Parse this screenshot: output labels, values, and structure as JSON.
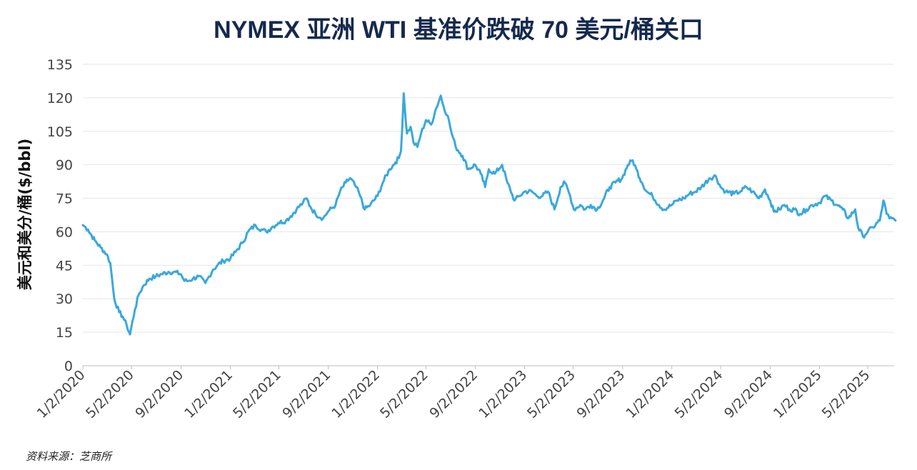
{
  "chart_data": {
    "type": "line",
    "title": "NYMEX 亚洲 WTI 基准价跌破 70 美元/桶关口",
    "ylabel": "美元和美分/桶($/bbl)",
    "xlabel": "",
    "ylim": [
      0,
      135
    ],
    "yticks": [
      0,
      15,
      30,
      45,
      60,
      75,
      90,
      105,
      120,
      135
    ],
    "xticks": [
      "1/2/2020",
      "5/2/2020",
      "9/2/2020",
      "1/2/2021",
      "5/2/2021",
      "9/2/2021",
      "1/2/2022",
      "5/2/2022",
      "9/2/2022",
      "1/2/2023",
      "5/2/2023",
      "9/2/2023",
      "1/2/2024",
      "5/2/2024",
      "9/2/2024",
      "1/2/2025",
      "5/2/2025"
    ],
    "grid": "horizontal",
    "color": "#3aa8dc",
    "series": [
      {
        "x": [
          "2020-01-02",
          "2020-01-15",
          "2020-02-01",
          "2020-02-15",
          "2020-03-01",
          "2020-03-10",
          "2020-03-20",
          "2020-04-01",
          "2020-04-10",
          "2020-04-20",
          "2020-04-28",
          "2020-05-10",
          "2020-05-20",
          "2020-06-01",
          "2020-06-15",
          "2020-07-01",
          "2020-07-15",
          "2020-08-01",
          "2020-08-15",
          "2020-09-01",
          "2020-09-10",
          "2020-09-20",
          "2020-10-01",
          "2020-10-15",
          "2020-11-01",
          "2020-11-10",
          "2020-11-20",
          "2020-12-01",
          "2020-12-15",
          "2021-01-02",
          "2021-01-15",
          "2021-02-01",
          "2021-02-15",
          "2021-03-05",
          "2021-03-20",
          "2021-04-01",
          "2021-04-15",
          "2021-05-01",
          "2021-05-20",
          "2021-06-01",
          "2021-06-15",
          "2021-07-01",
          "2021-07-10",
          "2021-07-20",
          "2021-08-01",
          "2021-08-20",
          "2021-09-01",
          "2021-09-20",
          "2021-10-01",
          "2021-10-15",
          "2021-10-26",
          "2021-11-10",
          "2021-11-20",
          "2021-12-01",
          "2021-12-15",
          "2022-01-02",
          "2022-01-15",
          "2022-02-01",
          "2022-02-15",
          "2022-02-24",
          "2022-03-01",
          "2022-03-08",
          "2022-03-16",
          "2022-03-25",
          "2022-04-01",
          "2022-04-11",
          "2022-04-20",
          "2022-05-02",
          "2022-05-15",
          "2022-05-25",
          "2022-06-08",
          "2022-06-15",
          "2022-06-25",
          "2022-07-05",
          "2022-07-15",
          "2022-08-01",
          "2022-08-15",
          "2022-09-01",
          "2022-09-15",
          "2022-09-26",
          "2022-10-05",
          "2022-10-20",
          "2022-11-07",
          "2022-11-20",
          "2022-12-08",
          "2022-12-20",
          "2023-01-02",
          "2023-01-20",
          "2023-02-01",
          "2023-02-15",
          "2023-03-01",
          "2023-03-17",
          "2023-04-01",
          "2023-04-12",
          "2023-04-25",
          "2023-05-04",
          "2023-05-20",
          "2023-06-01",
          "2023-06-15",
          "2023-07-01",
          "2023-07-15",
          "2023-08-01",
          "2023-08-15",
          "2023-09-01",
          "2023-09-15",
          "2023-09-27",
          "2023-10-06",
          "2023-10-20",
          "2023-11-01",
          "2023-11-15",
          "2023-12-01",
          "2023-12-13",
          "2024-01-02",
          "2024-01-15",
          "2024-02-01",
          "2024-02-15",
          "2024-03-01",
          "2024-03-15",
          "2024-04-05",
          "2024-04-20",
          "2024-05-02",
          "2024-05-15",
          "2024-06-04",
          "2024-06-20",
          "2024-07-05",
          "2024-07-20",
          "2024-08-05",
          "2024-08-20",
          "2024-09-02",
          "2024-09-11",
          "2024-09-25",
          "2024-10-07",
          "2024-10-20",
          "2024-11-01",
          "2024-11-15",
          "2024-12-01",
          "2024-12-15",
          "2025-01-02",
          "2025-01-15",
          "2025-02-01",
          "2025-02-15",
          "2025-03-01",
          "2025-03-15",
          "2025-04-01",
          "2025-04-08",
          "2025-04-20",
          "2025-05-02",
          "2025-05-15",
          "2025-06-01",
          "2025-06-10",
          "2025-06-18",
          "2025-06-25",
          "2025-07-01",
          "2025-07-10"
        ],
        "values": [
          63,
          61,
          56,
          53,
          50,
          46,
          30,
          24,
          22,
          18,
          14,
          25,
          32,
          36,
          39,
          40,
          41,
          42,
          42,
          41,
          38,
          38,
          39,
          40,
          37,
          40,
          43,
          45,
          47,
          48,
          51,
          55,
          60,
          63,
          61,
          60,
          62,
          64,
          65,
          67,
          70,
          73,
          75,
          71,
          68,
          66,
          69,
          72,
          78,
          82,
          84,
          80,
          76,
          70,
          72,
          76,
          82,
          88,
          91,
          93,
          96,
          122,
          104,
          107,
          100,
          98,
          104,
          110,
          108,
          114,
          121,
          116,
          112,
          104,
          98,
          94,
          88,
          90,
          86,
          80,
          88,
          86,
          90,
          82,
          74,
          76,
          78,
          78,
          76,
          76,
          78,
          70,
          80,
          82,
          76,
          70,
          72,
          70,
          72,
          70,
          74,
          80,
          82,
          84,
          90,
          92,
          88,
          82,
          78,
          76,
          72,
          70,
          72,
          74,
          75,
          77,
          78,
          80,
          84,
          85,
          80,
          78,
          77,
          78,
          80,
          78,
          75,
          79,
          74,
          69,
          70,
          72,
          70,
          70,
          68,
          70,
          72,
          73,
          76,
          74,
          72,
          70,
          66,
          70,
          62,
          58,
          60,
          62,
          65,
          74,
          68,
          66,
          66,
          65
        ]
      }
    ]
  },
  "source_note": "资料来源：芝商所"
}
